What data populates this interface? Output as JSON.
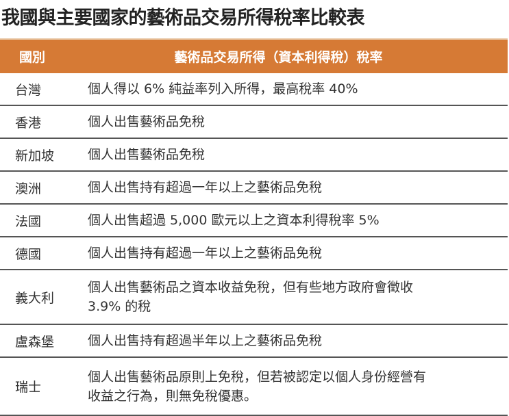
{
  "title": "我國與主要國家的藝術品交易所得稅率比較表",
  "header": {
    "country": "國別",
    "rate": "藝術品交易所得（資本利得稅）稅率"
  },
  "colors": {
    "header_bg": "#d67a35",
    "header_text": "#ffffff",
    "divider": "#555555"
  },
  "rows": [
    {
      "country": "台灣",
      "lines": [
        "個人得以 6% 純益率列入所得，最高稅率 40%"
      ]
    },
    {
      "country": "香港",
      "lines": [
        "個人出售藝術品免稅"
      ]
    },
    {
      "country": "新加坡",
      "lines": [
        "個人出售藝術品免稅"
      ]
    },
    {
      "country": "澳洲",
      "lines": [
        "個人出售持有超過一年以上之藝術品免稅"
      ]
    },
    {
      "country": "法國",
      "lines": [
        "個人出售超過 5,000 歐元以上之資本利得稅率 5%"
      ]
    },
    {
      "country": "德國",
      "lines": [
        "個人出售持有超過一年以上之藝術品免稅"
      ]
    },
    {
      "country": "義大利",
      "lines": [
        "個人出售藝術品之資本收益免稅，但有些地方政府會徵收",
        "3.9% 的稅"
      ]
    },
    {
      "country": "盧森堡",
      "lines": [
        "個人出售持有超過半年以上之藝術品免稅"
      ]
    },
    {
      "country": "瑞士",
      "lines": [
        "個人出售藝術品原則上免稅，但若被認定以個人身份經營有",
        "收益之行為，則無免稅優惠。"
      ]
    }
  ]
}
